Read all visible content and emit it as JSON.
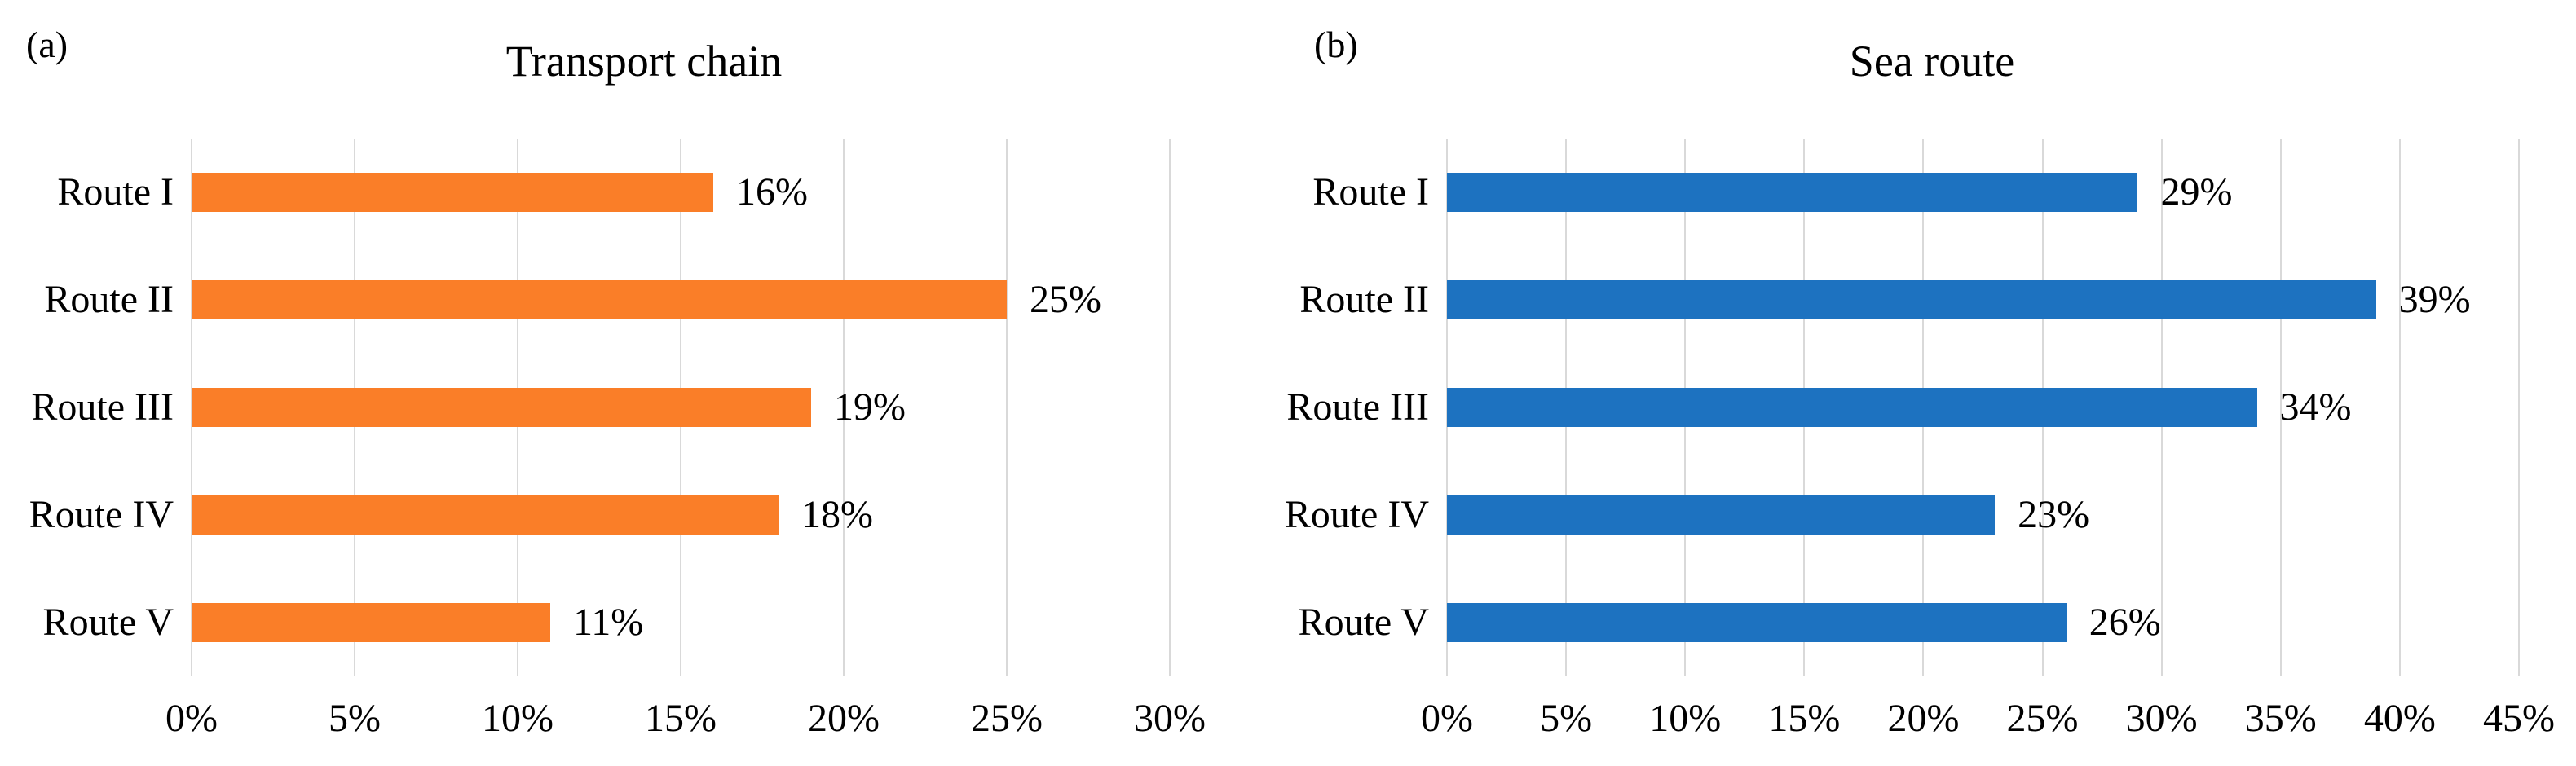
{
  "figure": {
    "background_color": "#FFFFFF",
    "text_color": "#000000",
    "gridline_color": "#D9D9D9"
  },
  "chart_data": [
    {
      "type": "bar",
      "orientation": "horizontal",
      "panel_label": "(a)",
      "title": "Transport chain",
      "categories": [
        "Route I",
        "Route II",
        "Route III",
        "Route IV",
        "Route V"
      ],
      "values": [
        16,
        25,
        19,
        18,
        11
      ],
      "value_labels": [
        "16%",
        "25%",
        "19%",
        "18%",
        "11%"
      ],
      "bar_color": "#FA7E28",
      "xlim": [
        0,
        30
      ],
      "x_tick_step": 5,
      "x_tick_labels": [
        "0%",
        "5%",
        "10%",
        "15%",
        "20%",
        "25%",
        "30%"
      ],
      "grid": true,
      "legend": false,
      "xlabel": "",
      "ylabel": ""
    },
    {
      "type": "bar",
      "orientation": "horizontal",
      "panel_label": "(b)",
      "title": "Sea route",
      "categories": [
        "Route I",
        "Route II",
        "Route III",
        "Route IV",
        "Route V"
      ],
      "values": [
        29,
        39,
        34,
        23,
        26
      ],
      "value_labels": [
        "29%",
        "39%",
        "34%",
        "23%",
        "26%"
      ],
      "bar_color": "#1D72C0",
      "xlim": [
        0,
        45
      ],
      "x_tick_step": 5,
      "x_tick_labels": [
        "0%",
        "5%",
        "10%",
        "15%",
        "20%",
        "25%",
        "30%",
        "35%",
        "40%",
        "45%"
      ],
      "grid": true,
      "legend": false,
      "xlabel": "",
      "ylabel": ""
    }
  ]
}
